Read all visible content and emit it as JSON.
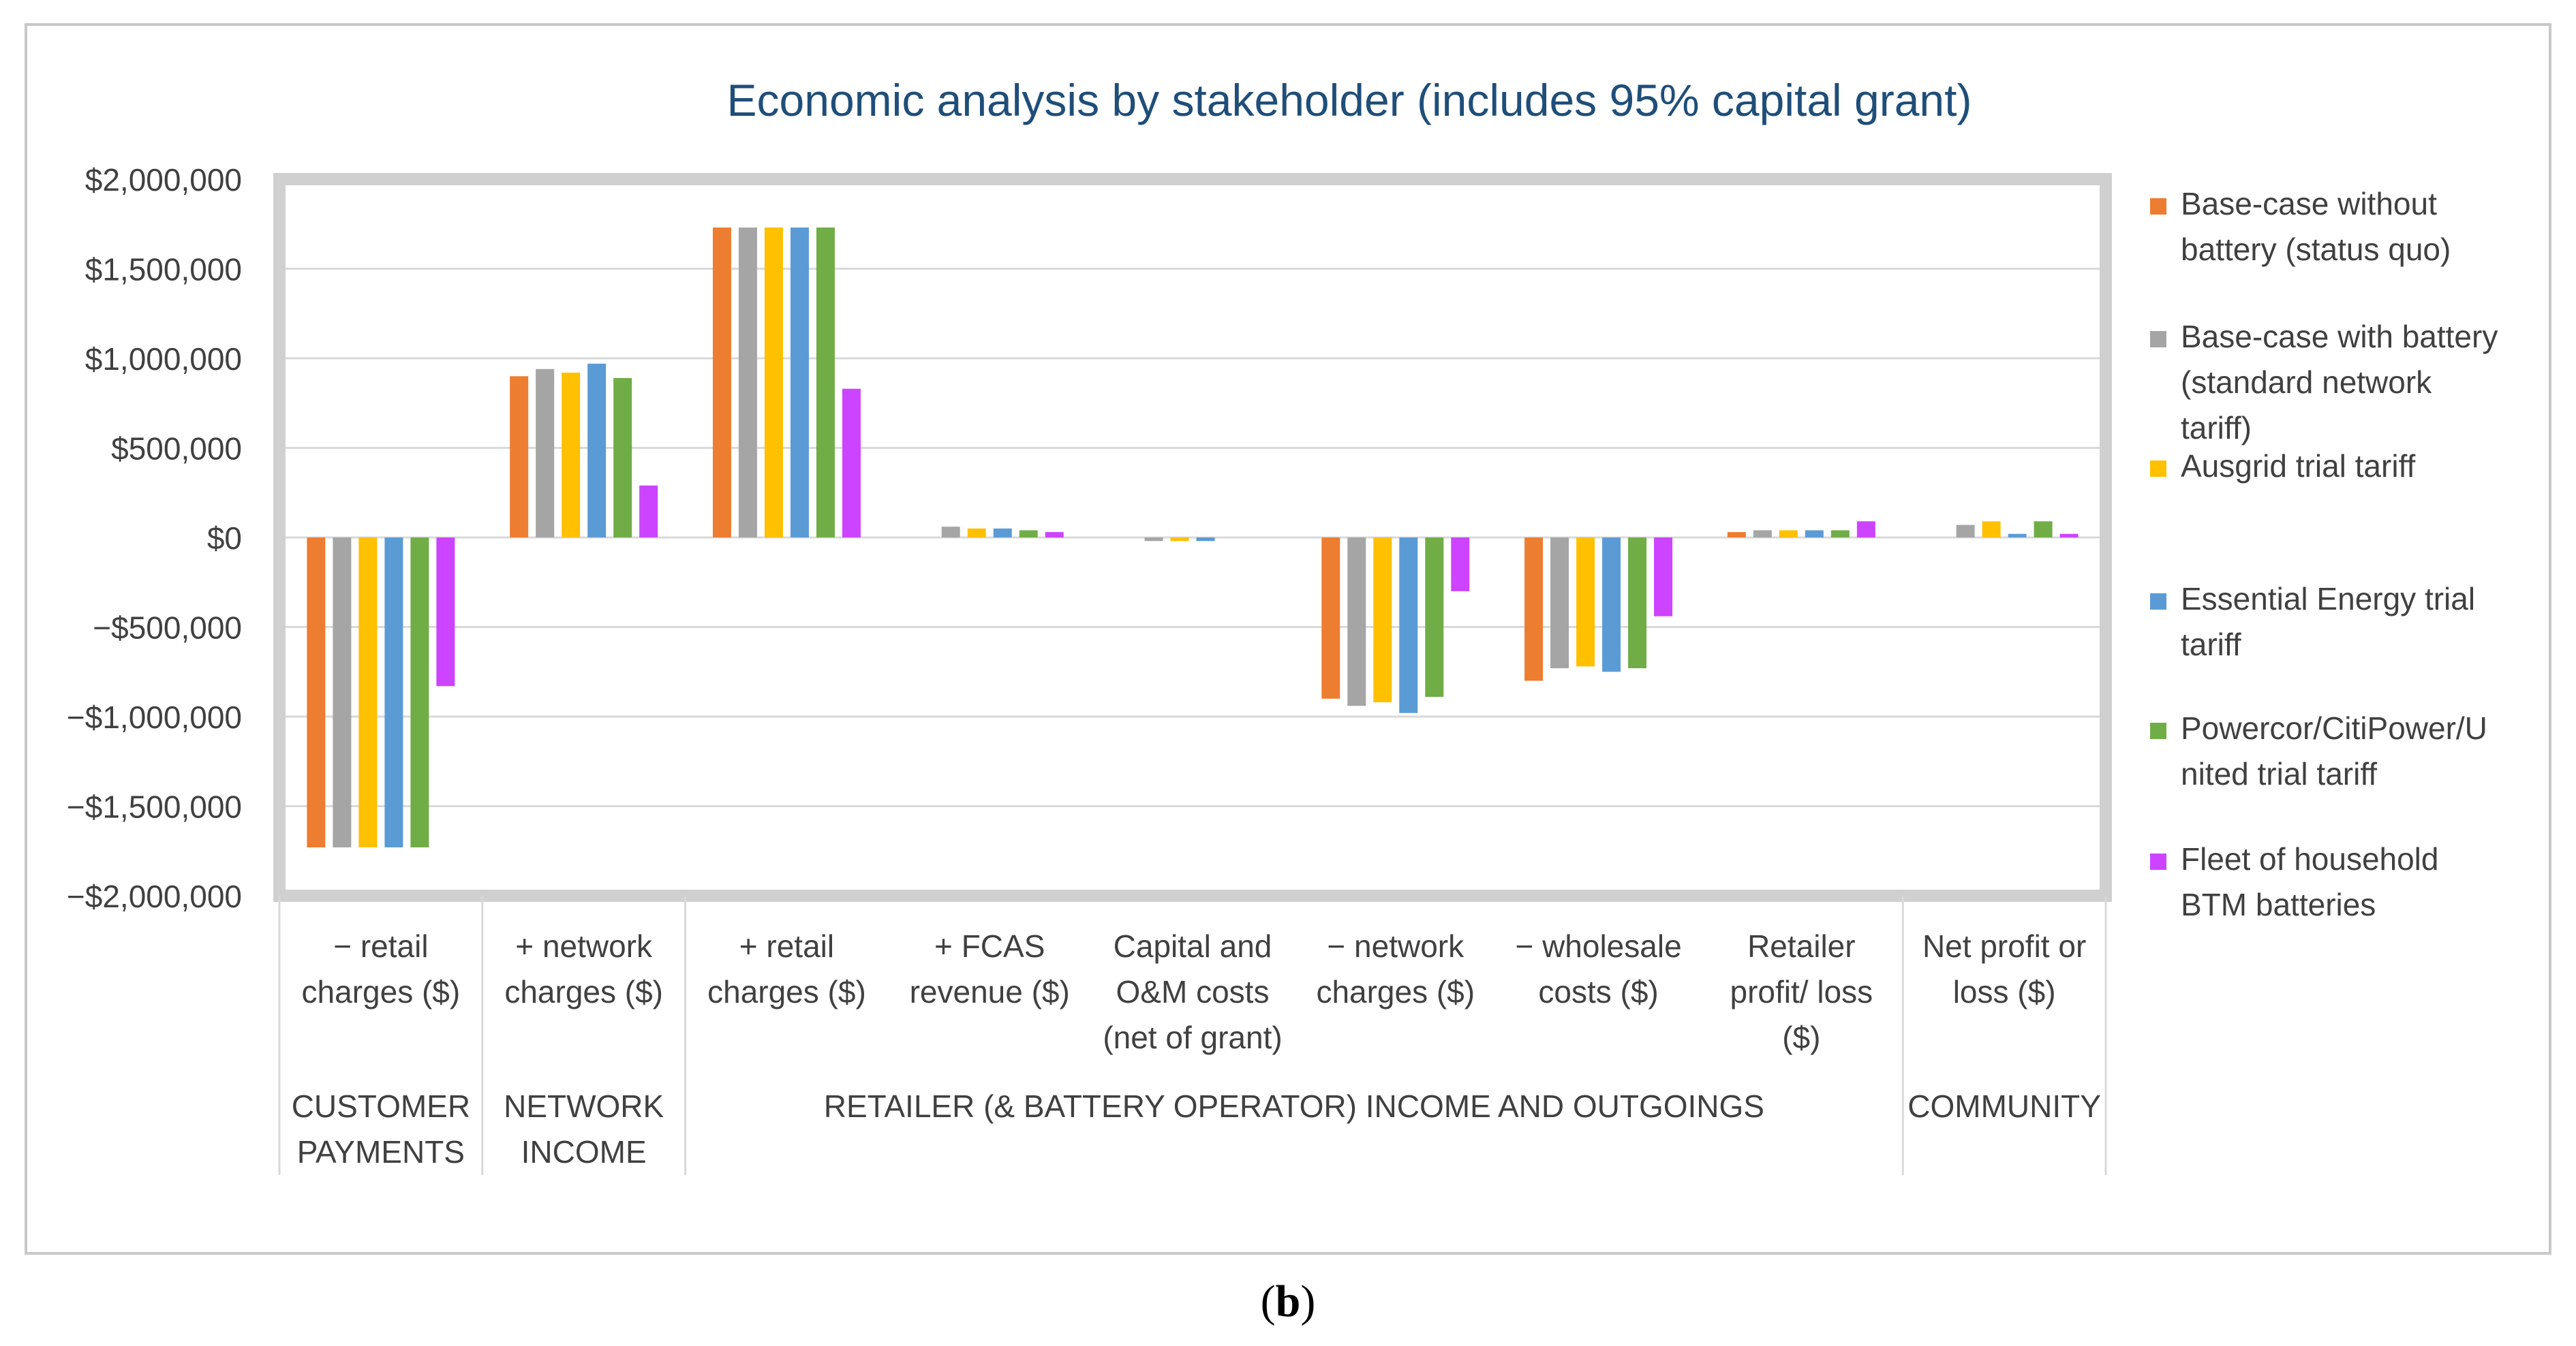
{
  "caption": {
    "open": "(",
    "letter": "b",
    "close": ")"
  },
  "colors": {
    "series": [
      "#ED7D31",
      "#A5A5A5",
      "#FFC000",
      "#5B9BD5",
      "#70AD47",
      "#CC44FF"
    ],
    "title": "#1F4E79",
    "text": "#404040",
    "grid": "#d9d9d9",
    "plot_border": "#d0d0d0",
    "frame": "#c8c8c8"
  },
  "chart_data": {
    "type": "bar",
    "title": "Economic analysis by stakeholder (includes 95% capital grant)",
    "xlabel": "",
    "ylabel": "",
    "ylim": [
      -2000000,
      2000000
    ],
    "yticks": [
      "$2,000,000",
      "$1,500,000",
      "$1,000,000",
      "$500,000",
      "$0",
      "−$500,000",
      "−$1,000,000",
      "−$1,500,000",
      "−$2,000,000"
    ],
    "ytick_values": [
      2000000,
      1500000,
      1000000,
      500000,
      0,
      -500000,
      -1000000,
      -1500000,
      -2000000
    ],
    "grid": true,
    "legend_position": "right",
    "categories": [
      [
        "− retail",
        "charges ($)"
      ],
      [
        "+ network",
        "charges ($)"
      ],
      [
        "+ retail",
        "charges ($)"
      ],
      [
        "+ FCAS",
        "revenue ($)"
      ],
      [
        "Capital and",
        "O&M costs",
        "(net of grant)"
      ],
      [
        "− network",
        "charges ($)"
      ],
      [
        "− wholesale",
        "costs ($)"
      ],
      [
        "Retailer",
        "profit/ loss",
        "($)"
      ],
      [
        "Net profit or",
        "loss ($)"
      ]
    ],
    "groups": [
      {
        "label": [
          "CUSTOMER",
          "PAYMENTS"
        ],
        "span": [
          0,
          0
        ]
      },
      {
        "label": [
          "NETWORK",
          "INCOME"
        ],
        "span": [
          1,
          1
        ]
      },
      {
        "label": [
          "RETAILER (& BATTERY OPERATOR) INCOME AND OUTGOINGS"
        ],
        "span": [
          2,
          7
        ]
      },
      {
        "label": [
          "COMMUNITY"
        ],
        "span": [
          8,
          8
        ]
      }
    ],
    "series": [
      {
        "name": [
          "Base-case without",
          "battery (status quo)"
        ],
        "values": [
          -1730000,
          900000,
          1730000,
          0,
          0,
          -900000,
          -800000,
          30000,
          0
        ]
      },
      {
        "name": [
          "Base-case with battery",
          "(standard network",
          "tariff)"
        ],
        "values": [
          -1730000,
          940000,
          1730000,
          60000,
          -20000,
          -940000,
          -730000,
          40000,
          70000
        ]
      },
      {
        "name": [
          "Ausgrid trial tariff"
        ],
        "values": [
          -1730000,
          920000,
          1730000,
          50000,
          -20000,
          -920000,
          -720000,
          40000,
          90000
        ]
      },
      {
        "name": [
          "Essential Energy trial",
          "tariff"
        ],
        "values": [
          -1730000,
          970000,
          1730000,
          50000,
          -20000,
          -980000,
          -750000,
          40000,
          20000
        ]
      },
      {
        "name": [
          "Powercor/CitiPower/U",
          "nited trial tariff"
        ],
        "values": [
          -1730000,
          890000,
          1730000,
          40000,
          0,
          -890000,
          -730000,
          40000,
          90000
        ]
      },
      {
        "name": [
          "Fleet of household",
          "BTM batteries"
        ],
        "values": [
          -830000,
          290000,
          830000,
          30000,
          0,
          -300000,
          -440000,
          90000,
          20000
        ]
      }
    ]
  }
}
